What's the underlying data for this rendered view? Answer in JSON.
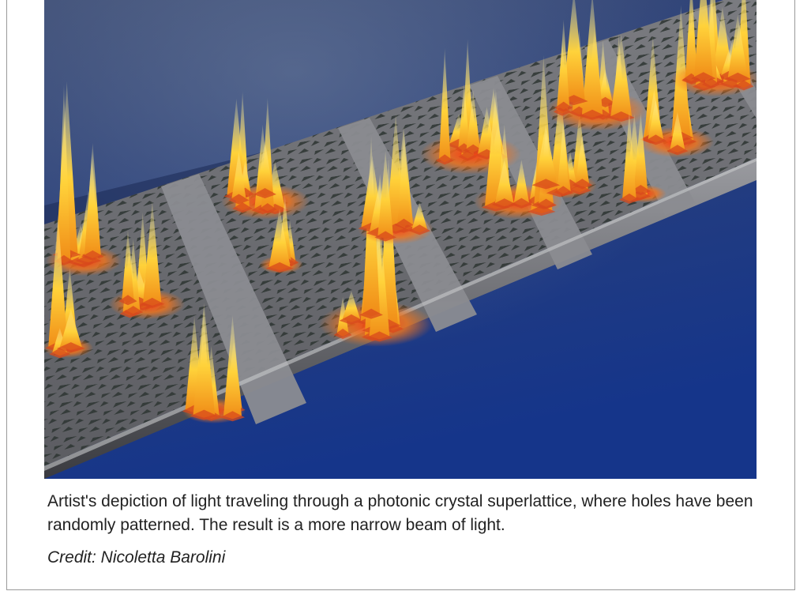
{
  "figure": {
    "image_name": "photonic-crystal-superlattice-illustration",
    "colors": {
      "background_top": "#2a3e72",
      "background_bottom": "#183782",
      "strip": "#6c6c70",
      "strip_edge": "#3b3b40",
      "hole": "#2f3a33",
      "peak_core": "#ffe14a",
      "peak_glow": "#f07a1c",
      "peak_hot": "#e2301a"
    }
  },
  "caption": {
    "text": "Artist's depiction of light traveling through a photonic crystal superlattice, where holes have been randomly patterned. The result is a more narrow beam of light."
  },
  "credit": {
    "text": "Credit: Nicoletta Barolini"
  }
}
